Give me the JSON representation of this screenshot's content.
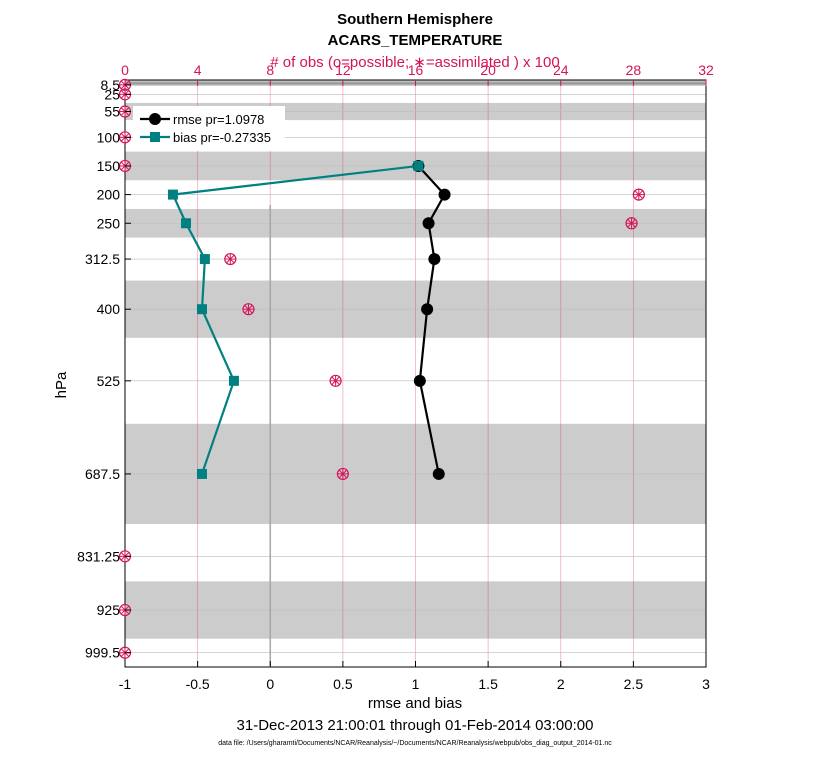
{
  "chart_data": {
    "type": "line",
    "title": "Southern Hemisphere",
    "subtitle": "ACARS_TEMPERATURE",
    "top_axis_label": "# of obs (o=possible; ∗=assimilated ) x 100",
    "top_ticks": [
      "0",
      "4",
      "8",
      "12",
      "16",
      "20",
      "24",
      "28",
      "32"
    ],
    "top_range": [
      0,
      32
    ],
    "xlabel": "rmse and bias",
    "x_ticks": [
      "-1",
      "-0.5",
      "0",
      "0.5",
      "1",
      "1.5",
      "2",
      "2.5",
      "3"
    ],
    "xlim": [
      -1,
      3
    ],
    "ylabel": "hPa",
    "y_ticks": [
      "8.5",
      "25",
      "55",
      "100",
      "150",
      "200",
      "250",
      "312.5",
      "400",
      "525",
      "687.5",
      "831.25",
      "925",
      "999.5"
    ],
    "levels": [
      8.5,
      25,
      55,
      100,
      150,
      200,
      250,
      312.5,
      400,
      525,
      687.5,
      831.25,
      925,
      999.5
    ],
    "date_range": "31-Dec-2013 21:00:01 through 01-Feb-2014 03:00:00",
    "data_file": "data file: /Users/gharamti/Documents/NCAR/Reanalysis/~/Documents/NCAR/Reanalysis/webpub/obs_diag_output_2014-01.nc",
    "series": [
      {
        "name": "rmse pr=1.0978",
        "color": "#000000",
        "marker": "circle",
        "levels": [
          150,
          200,
          250,
          312.5,
          400,
          525,
          687.5
        ],
        "values": [
          1.02,
          1.2,
          1.09,
          1.13,
          1.08,
          1.03,
          1.16
        ]
      },
      {
        "name": "bias pr=-0.27335",
        "color": "#008080",
        "marker": "square",
        "levels": [
          150,
          200,
          250,
          312.5,
          400,
          525,
          687.5
        ],
        "values": [
          1.02,
          -0.67,
          -0.58,
          -0.45,
          -0.47,
          -0.25,
          -0.47
        ]
      }
    ],
    "obs_possible": {
      "levels": [
        8.5,
        25,
        55,
        100,
        150,
        200,
        250,
        312.5,
        400,
        525,
        687.5,
        831.25,
        925,
        999.5
      ],
      "values": [
        0,
        0,
        0,
        0,
        0,
        28.3,
        27.9,
        5.8,
        6.8,
        11.6,
        12.0,
        0,
        0,
        0
      ]
    },
    "obs_assimilated": {
      "levels": [
        8.5,
        25,
        55,
        100,
        150,
        200,
        250,
        312.5,
        400,
        525,
        687.5,
        831.25,
        925,
        999.5
      ],
      "values": [
        0,
        0,
        0,
        0,
        0,
        28.3,
        27.9,
        5.8,
        6.8,
        11.6,
        12.0,
        0,
        0,
        0
      ]
    },
    "shaded_bands_hPa": [
      [
        0,
        10
      ],
      [
        40,
        70
      ],
      [
        125,
        175
      ],
      [
        225,
        275
      ],
      [
        350,
        450
      ],
      [
        600,
        775
      ],
      [
        875,
        975
      ]
    ],
    "legend_position": "top-left"
  }
}
